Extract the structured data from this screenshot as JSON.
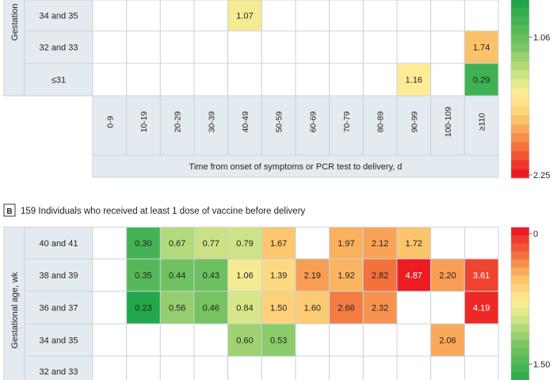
{
  "chart_data": [
    {
      "type": "heatmap",
      "panel_letter": "",
      "title": "",
      "ylabel": "Gestation",
      "xlabel": "Time from onset of symptoms or PCR test to delivery, d",
      "columns": [
        "0-9",
        "10-19",
        "20-29",
        "30-39",
        "40-49",
        "50-59",
        "60-69",
        "70-79",
        "80-89",
        "90-99",
        "100-109",
        "≥110"
      ],
      "rows": [
        {
          "label": "34 and 35",
          "values": [
            null,
            null,
            null,
            null,
            1.07,
            null,
            null,
            null,
            null,
            null,
            null,
            null
          ]
        },
        {
          "label": "32 and 33",
          "values": [
            null,
            null,
            null,
            null,
            null,
            null,
            null,
            null,
            null,
            null,
            null,
            1.74
          ]
        },
        {
          "label": "≤31",
          "values": [
            null,
            null,
            null,
            null,
            null,
            null,
            null,
            null,
            null,
            1.16,
            null,
            0.29
          ]
        }
      ],
      "colorbar": {
        "ticks": [
          "1.06",
          "2.25"
        ],
        "low_color": "#1fa64a",
        "mid_color": "#fff0a0",
        "high_color": "#ec1c24"
      }
    },
    {
      "type": "heatmap",
      "panel_letter": "B",
      "title": "159 Individuals who received at least 1 dose of vaccine before delivery",
      "ylabel": "Gestational age, wk",
      "columns": [
        "0-9",
        "10-19",
        "20-29",
        "30-39",
        "40-49",
        "50-59",
        "60-69",
        "70-79",
        "80-89",
        "90-99",
        "100-109",
        "≥110"
      ],
      "rows": [
        {
          "label": "40 and 41",
          "values": [
            null,
            0.3,
            0.67,
            0.77,
            0.79,
            1.67,
            null,
            1.97,
            2.12,
            1.72,
            null,
            null
          ]
        },
        {
          "label": "38 and 39",
          "values": [
            null,
            0.35,
            0.44,
            0.43,
            1.06,
            1.39,
            2.19,
            1.92,
            2.82,
            4.87,
            2.2,
            3.61
          ]
        },
        {
          "label": "36 and 37",
          "values": [
            null,
            0.23,
            0.56,
            0.46,
            0.84,
            1.5,
            1.6,
            2.66,
            2.32,
            null,
            null,
            4.19
          ]
        },
        {
          "label": "34 and 35",
          "values": [
            null,
            null,
            null,
            null,
            0.6,
            0.53,
            null,
            null,
            null,
            null,
            2.06,
            null
          ]
        },
        {
          "label": "32 and 33",
          "values": [
            null,
            null,
            null,
            null,
            null,
            null,
            null,
            null,
            null,
            null,
            null,
            null
          ]
        }
      ],
      "colorbar": {
        "ticks": [
          "0",
          "1.50"
        ],
        "low_color": "#1fa64a",
        "mid_color": "#fff0a0",
        "high_color": "#ec1c24"
      }
    }
  ]
}
